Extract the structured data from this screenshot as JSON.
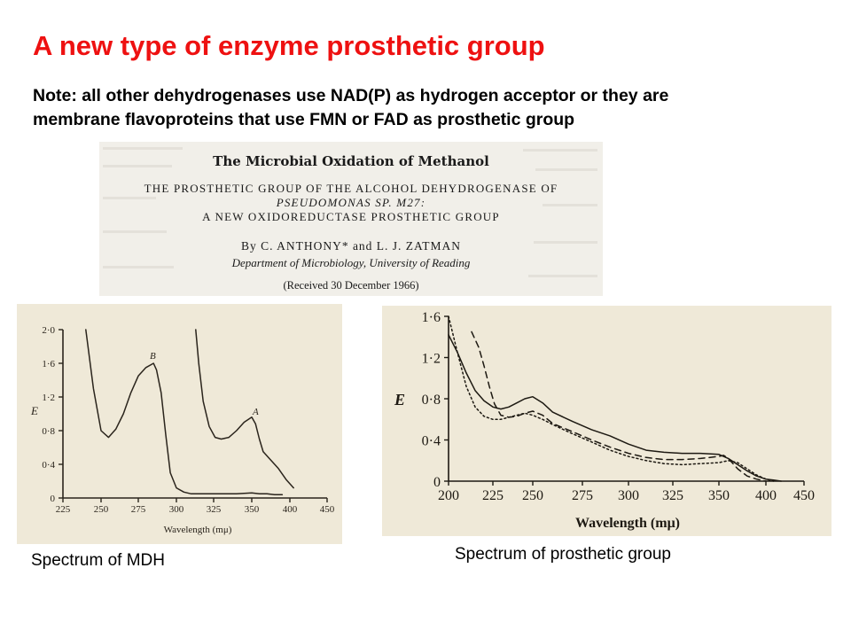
{
  "slide": {
    "title": "A new type of enzyme prosthetic group",
    "note_line1": "Note: all other dehydrogenases use NAD(P) as hydrogen acceptor or they are",
    "note_line2": "membrane flavoproteins that use FMN or FAD as prosthetic group"
  },
  "paper": {
    "title": "The Microbial Oxidation of Methanol",
    "subtitle_line1": "THE PROSTHETIC GROUP OF THE ALCOHOL DEHYDROGENASE OF",
    "subtitle_line2": "PSEUDOMONAS SP. M27:",
    "subtitle_line3": "A NEW OXIDOREDUCTASE PROSTHETIC GROUP",
    "authors": "By C. ANTHONY* and L. J. ZATMAN",
    "department": "Department of Microbiology, University of Reading",
    "received": "(Received 30 December 1966)"
  },
  "captions": {
    "left": "Spectrum of MDH",
    "right": "Spectrum of prosthetic group"
  },
  "chart_data": [
    {
      "type": "line",
      "xlabel": "Wavelength (mμ)",
      "ylabel": "E",
      "xlim": [
        225,
        450
      ],
      "ylim": [
        0,
        2.0
      ],
      "xticks": [
        "225",
        "250",
        "275",
        "300",
        "325",
        "350",
        "400",
        "450"
      ],
      "yticks": [
        "0",
        "0·4",
        "0·8",
        "1·2",
        "1·6",
        "2·0"
      ],
      "series": [
        {
          "name": "B",
          "x": [
            240,
            245,
            250,
            255,
            260,
            265,
            270,
            275,
            280,
            285,
            287,
            290,
            293,
            296,
            300,
            305,
            310,
            320,
            330,
            340,
            350,
            360,
            370,
            380,
            390
          ],
          "values": [
            2.0,
            1.3,
            0.8,
            0.72,
            0.82,
            1.0,
            1.25,
            1.45,
            1.55,
            1.6,
            1.52,
            1.25,
            0.75,
            0.3,
            0.12,
            0.07,
            0.05,
            0.05,
            0.05,
            0.05,
            0.06,
            0.05,
            0.05,
            0.04,
            0.04
          ]
        },
        {
          "name": "A",
          "x": [
            313,
            315,
            318,
            322,
            326,
            330,
            335,
            340,
            345,
            350,
            355,
            360,
            365,
            375,
            385,
            395,
            405
          ],
          "values": [
            2.0,
            1.6,
            1.15,
            0.85,
            0.72,
            0.7,
            0.72,
            0.8,
            0.9,
            0.96,
            0.88,
            0.7,
            0.55,
            0.45,
            0.35,
            0.22,
            0.12
          ]
        }
      ]
    },
    {
      "type": "line",
      "xlabel": "Wavelength (mμ)",
      "ylabel": "E",
      "xlim": [
        200,
        450
      ],
      "ylim": [
        0,
        1.6
      ],
      "xticks": [
        "200",
        "225",
        "250",
        "275",
        "300",
        "325",
        "350",
        "400",
        "450"
      ],
      "yticks": [
        "0",
        "0·4",
        "0·8",
        "1·2",
        "1·6"
      ],
      "series": [
        {
          "x": [
            200,
            205,
            210,
            215,
            220,
            225,
            230,
            235,
            240,
            245,
            250,
            255,
            260,
            270,
            280,
            290,
            300,
            310,
            320,
            330,
            340,
            350,
            360,
            370,
            380,
            390,
            400,
            410,
            420
          ],
          "values": [
            1.42,
            1.25,
            1.05,
            0.88,
            0.78,
            0.72,
            0.7,
            0.72,
            0.76,
            0.8,
            0.82,
            0.76,
            0.67,
            0.58,
            0.5,
            0.44,
            0.36,
            0.3,
            0.28,
            0.27,
            0.27,
            0.26,
            0.22,
            0.16,
            0.1,
            0.05,
            0.02,
            0.01,
            0.0
          ]
        },
        {
          "x": [
            213,
            217,
            220,
            223,
            226,
            230,
            235,
            240,
            245,
            250,
            255,
            260,
            270,
            280,
            290,
            300,
            310,
            320,
            330,
            340,
            350,
            355,
            360,
            370,
            380,
            390,
            400
          ],
          "values": [
            1.45,
            1.3,
            1.12,
            0.92,
            0.75,
            0.64,
            0.62,
            0.63,
            0.66,
            0.68,
            0.64,
            0.56,
            0.48,
            0.4,
            0.33,
            0.27,
            0.23,
            0.21,
            0.21,
            0.22,
            0.24,
            0.25,
            0.22,
            0.12,
            0.05,
            0.02,
            0.0
          ]
        },
        {
          "x": [
            200,
            205,
            210,
            215,
            220,
            225,
            230,
            235,
            240,
            245,
            250,
            255,
            260,
            270,
            280,
            290,
            300,
            310,
            320,
            330,
            340,
            350,
            360,
            370,
            380,
            390,
            400,
            410
          ],
          "values": [
            1.6,
            1.25,
            0.92,
            0.72,
            0.63,
            0.6,
            0.6,
            0.62,
            0.64,
            0.66,
            0.64,
            0.6,
            0.55,
            0.46,
            0.38,
            0.3,
            0.24,
            0.2,
            0.17,
            0.16,
            0.17,
            0.18,
            0.2,
            0.18,
            0.12,
            0.06,
            0.02,
            0.0
          ]
        }
      ]
    }
  ]
}
